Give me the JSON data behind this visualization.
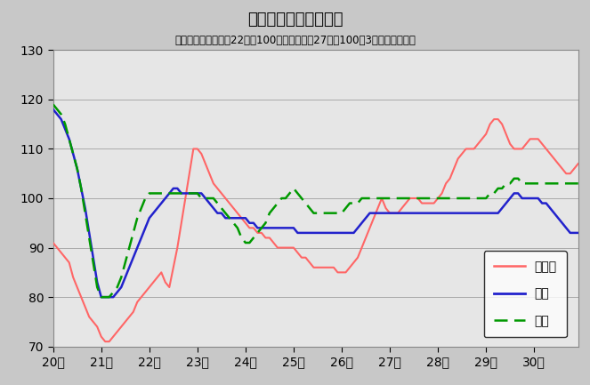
{
  "title": "鉱工業生産指数の推移",
  "subtitle": "（季節調整済、平成22年＝100、全国は平成27年＝100、3ヶ月移動平均）",
  "ylim": [
    70,
    130
  ],
  "yticks": [
    70,
    80,
    90,
    100,
    110,
    120,
    130
  ],
  "tottori_color": "#ff6666",
  "chugoku_color": "#2222cc",
  "zenkoku_color": "#009900",
  "legend_labels": [
    "鳥取県",
    "中国",
    "全国"
  ],
  "x_tick_labels": [
    "20年",
    "21年",
    "22年",
    "23年",
    "24年",
    "25年",
    "26年",
    "27年",
    "28年",
    "29年",
    "30年"
  ],
  "tottori": [
    91,
    90,
    89,
    88,
    87,
    84,
    82,
    80,
    78,
    76,
    75,
    74,
    72,
    71,
    71,
    72,
    73,
    74,
    75,
    76,
    77,
    79,
    80,
    81,
    82,
    83,
    84,
    85,
    83,
    82,
    86,
    90,
    95,
    100,
    105,
    110,
    110,
    109,
    107,
    105,
    103,
    102,
    101,
    100,
    99,
    98,
    97,
    96,
    95,
    94,
    94,
    93,
    93,
    92,
    92,
    91,
    90,
    90,
    90,
    90,
    90,
    89,
    88,
    88,
    87,
    86,
    86,
    86,
    86,
    86,
    86,
    85,
    85,
    85,
    86,
    87,
    88,
    90,
    92,
    94,
    96,
    98,
    100,
    98,
    97,
    97,
    97,
    98,
    99,
    100,
    100,
    100,
    99,
    99,
    99,
    99,
    100,
    101,
    103,
    104,
    106,
    108,
    109,
    110,
    110,
    110,
    111,
    112,
    113,
    115,
    116,
    116,
    115,
    113,
    111,
    110,
    110,
    110,
    111,
    112,
    112,
    112,
    111,
    110,
    109,
    108,
    107,
    106,
    105,
    105,
    106,
    107
  ],
  "chugoku": [
    118,
    117,
    116,
    114,
    112,
    109,
    106,
    102,
    98,
    93,
    88,
    83,
    80,
    80,
    80,
    80,
    81,
    82,
    84,
    86,
    88,
    90,
    92,
    94,
    96,
    97,
    98,
    99,
    100,
    101,
    102,
    102,
    101,
    101,
    101,
    101,
    101,
    101,
    100,
    99,
    98,
    97,
    97,
    96,
    96,
    96,
    96,
    96,
    96,
    95,
    95,
    94,
    94,
    94,
    94,
    94,
    94,
    94,
    94,
    94,
    94,
    93,
    93,
    93,
    93,
    93,
    93,
    93,
    93,
    93,
    93,
    93,
    93,
    93,
    93,
    93,
    94,
    95,
    96,
    97,
    97,
    97,
    97,
    97,
    97,
    97,
    97,
    97,
    97,
    97,
    97,
    97,
    97,
    97,
    97,
    97,
    97,
    97,
    97,
    97,
    97,
    97,
    97,
    97,
    97,
    97,
    97,
    97,
    97,
    97,
    97,
    97,
    98,
    99,
    100,
    101,
    101,
    100,
    100,
    100,
    100,
    100,
    99,
    99,
    98,
    97,
    96,
    95,
    94,
    93,
    93,
    93
  ],
  "zenkoku": [
    119,
    118,
    117,
    115,
    112,
    109,
    106,
    102,
    97,
    92,
    87,
    82,
    80,
    80,
    80,
    81,
    82,
    84,
    87,
    90,
    93,
    96,
    98,
    100,
    101,
    101,
    101,
    101,
    101,
    101,
    101,
    101,
    101,
    101,
    101,
    101,
    101,
    100,
    100,
    100,
    100,
    99,
    98,
    97,
    96,
    95,
    94,
    92,
    91,
    91,
    92,
    93,
    94,
    95,
    97,
    98,
    99,
    100,
    100,
    101,
    102,
    101,
    100,
    99,
    98,
    97,
    97,
    97,
    97,
    97,
    97,
    97,
    97,
    98,
    99,
    99,
    99,
    100,
    100,
    100,
    100,
    100,
    100,
    100,
    100,
    100,
    100,
    100,
    100,
    100,
    100,
    100,
    100,
    100,
    100,
    100,
    100,
    100,
    100,
    100,
    100,
    100,
    100,
    100,
    100,
    100,
    100,
    100,
    100,
    101,
    101,
    102,
    102,
    103,
    103,
    104,
    104,
    103,
    103,
    103,
    103,
    103,
    103,
    103,
    103,
    103,
    103,
    103,
    103,
    103,
    103,
    103
  ]
}
